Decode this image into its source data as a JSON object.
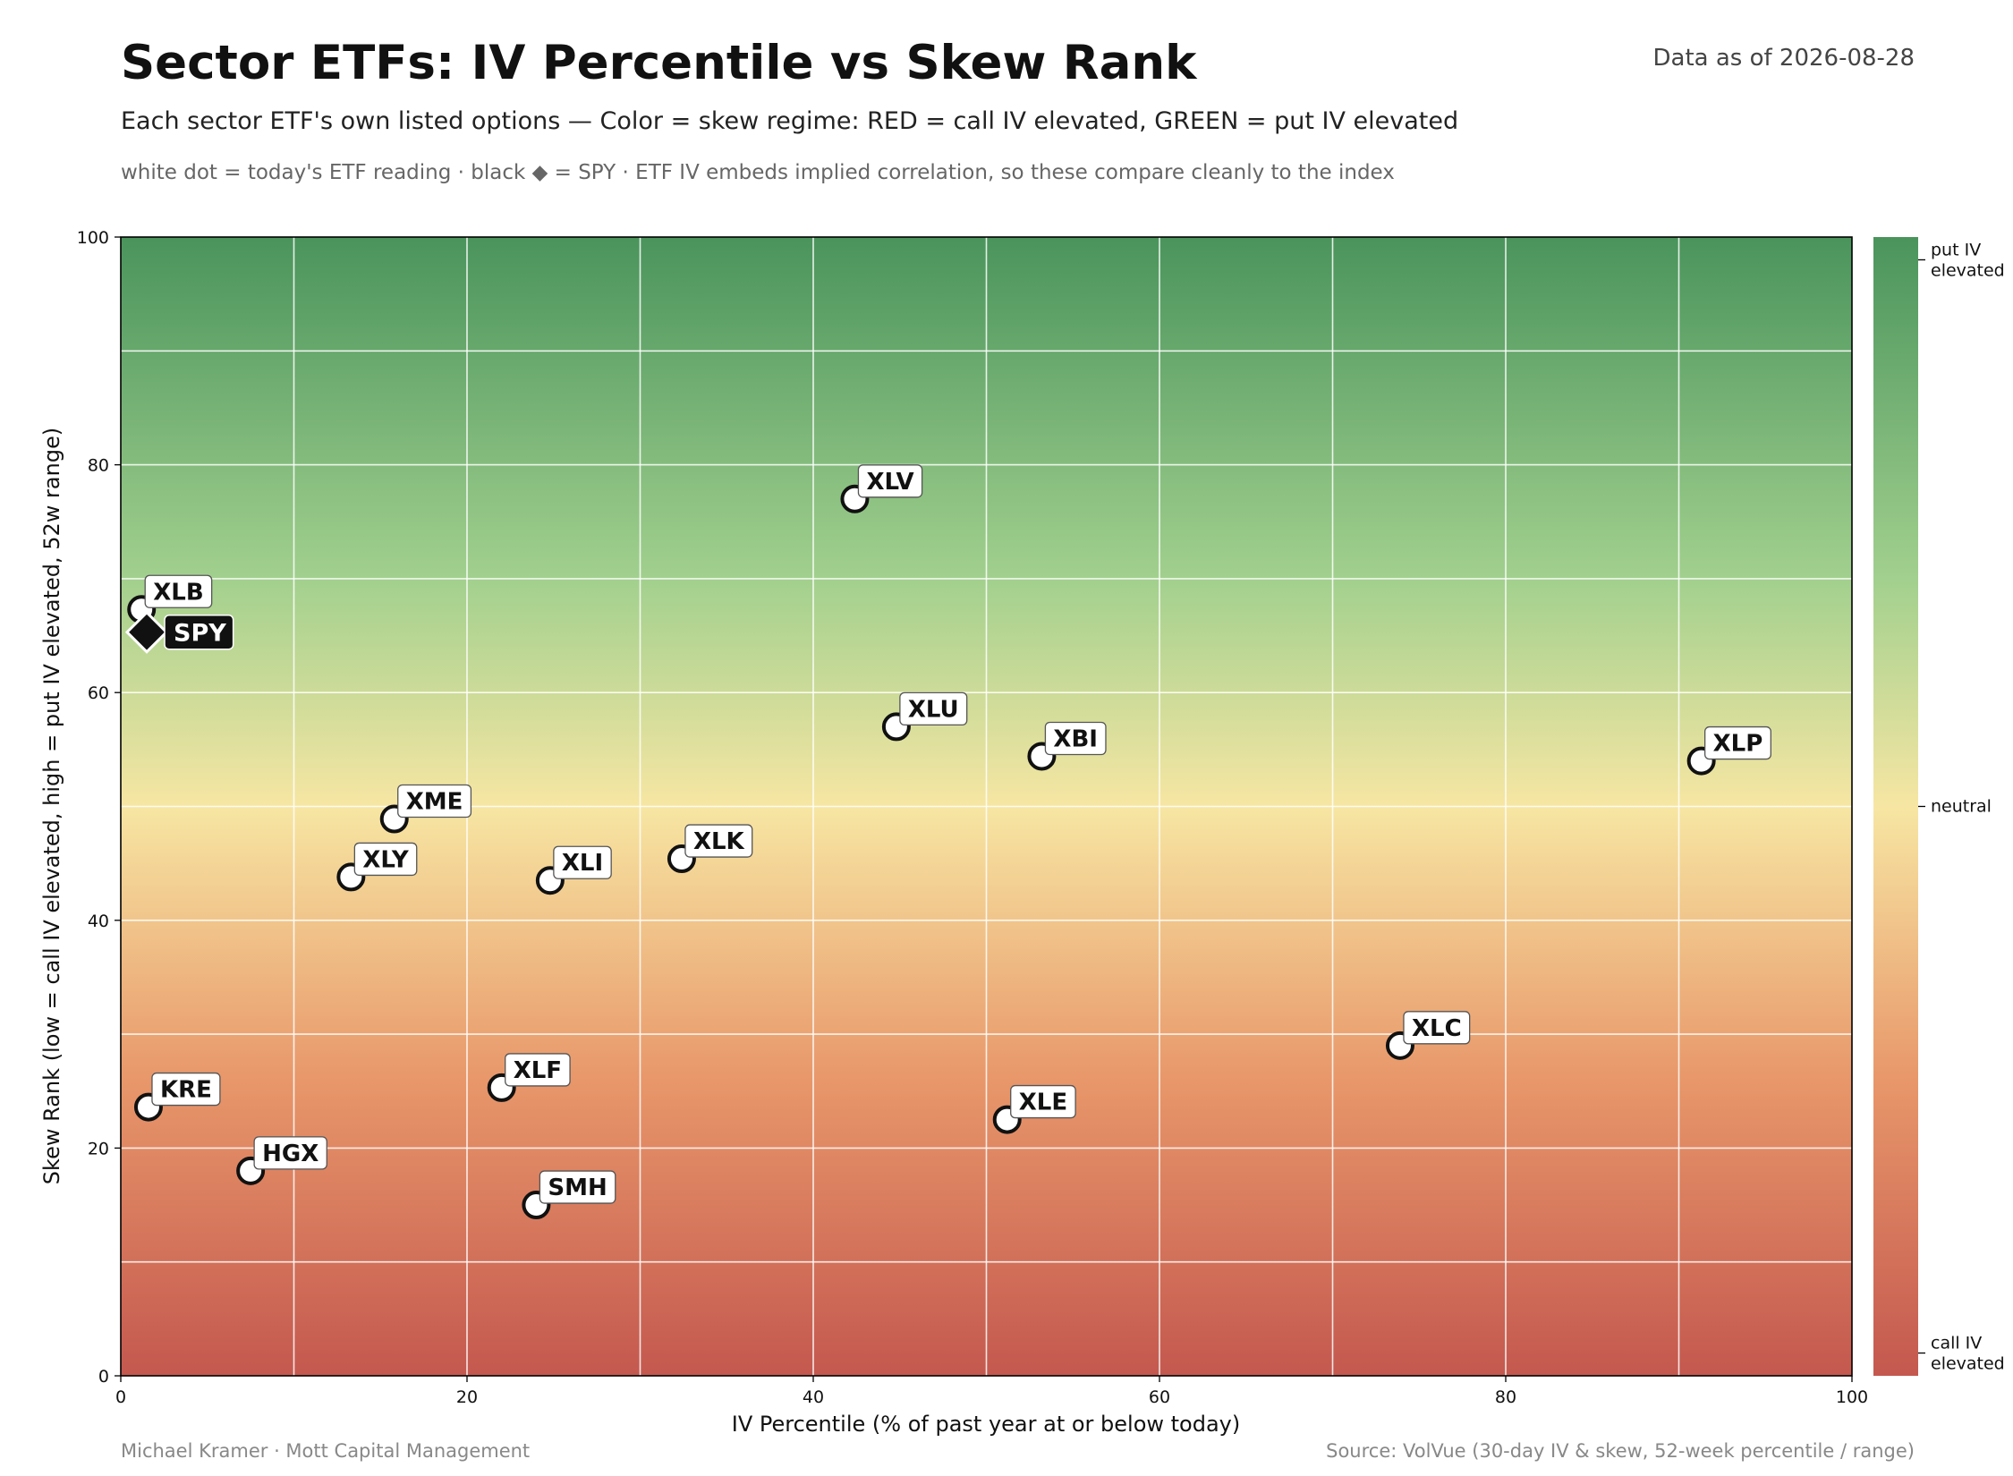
{
  "header": {
    "title": "Sector ETFs:  IV Percentile  vs  Skew Rank",
    "as_of": "Data as of 2026-08-28",
    "subtitle": "Each sector ETF's own listed options  —  Color = skew regime:  RED = call IV elevated,  GREEN = put IV elevated",
    "note": "white dot = today's ETF reading · black ◆ = SPY · ETF IV embeds implied correlation, so these compare cleanly to the index"
  },
  "footer": {
    "left": "Michael Kramer  ·  Mott Capital Management",
    "right": "Source: VolVue (30-day IV & skew, 52-week percentile / range)"
  },
  "colors": {
    "green": "#4a945c",
    "light_green": "#a2d08e",
    "yellow": "#f7e6a3",
    "orange": "#e8976a",
    "red": "#c4584f",
    "marker_fill": "#ffffff",
    "spy_fill": "#111111"
  },
  "chart_data": {
    "type": "scatter",
    "xlabel": "IV Percentile   (% of past year at or below today)",
    "ylabel": "Skew Rank   (low = call IV elevated, high = put IV elevated,  52w range)",
    "xlim": [
      0,
      100
    ],
    "ylim": [
      0,
      100
    ],
    "xticks": [
      0,
      20,
      40,
      60,
      80,
      100
    ],
    "yticks": [
      0,
      20,
      40,
      60,
      80,
      100
    ],
    "grid": true,
    "colorbar": {
      "labels": [
        {
          "value": 98,
          "lines": [
            "put IV",
            "elevated"
          ]
        },
        {
          "value": 50,
          "lines": [
            "neutral"
          ]
        },
        {
          "value": 2,
          "lines": [
            "call IV",
            "elevated"
          ]
        }
      ]
    },
    "points": [
      {
        "label": "XLV",
        "x": 42.4,
        "y": 77.0
      },
      {
        "label": "XLB",
        "x": 1.2,
        "y": 67.3
      },
      {
        "label": "XLU",
        "x": 44.8,
        "y": 57.0
      },
      {
        "label": "XBI",
        "x": 53.2,
        "y": 54.4
      },
      {
        "label": "XLP",
        "x": 91.3,
        "y": 54.0
      },
      {
        "label": "XME",
        "x": 15.8,
        "y": 48.9
      },
      {
        "label": "XLK",
        "x": 32.4,
        "y": 45.4
      },
      {
        "label": "XLY",
        "x": 13.3,
        "y": 43.8
      },
      {
        "label": "XLI",
        "x": 24.8,
        "y": 43.5
      },
      {
        "label": "XLC",
        "x": 73.9,
        "y": 29.0
      },
      {
        "label": "XLF",
        "x": 22.0,
        "y": 25.3
      },
      {
        "label": "KRE",
        "x": 1.6,
        "y": 23.6
      },
      {
        "label": "XLE",
        "x": 51.2,
        "y": 22.5
      },
      {
        "label": "HGX",
        "x": 7.5,
        "y": 18.0
      },
      {
        "label": "SMH",
        "x": 24.0,
        "y": 15.0
      }
    ],
    "benchmark": {
      "label": "SPY",
      "x": 1.5,
      "y": 65.3
    }
  }
}
